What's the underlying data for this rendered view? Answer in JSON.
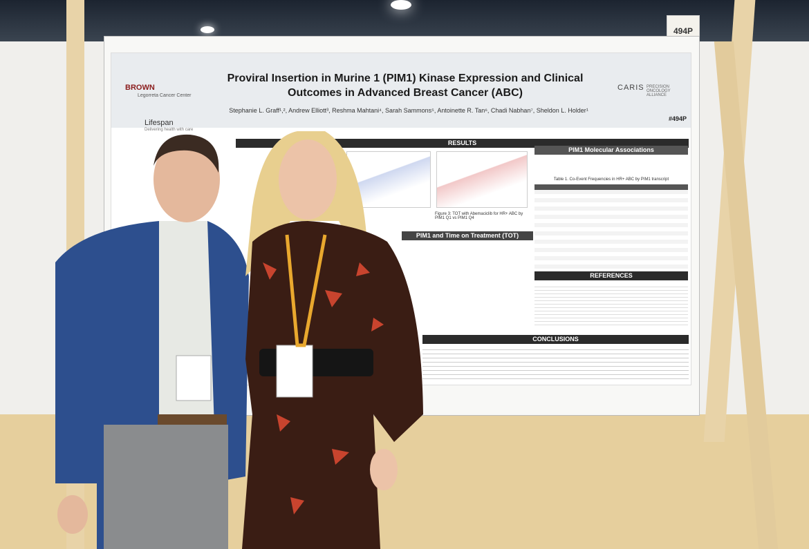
{
  "booth_number": "494P",
  "poster": {
    "title": "Proviral Insertion in Murine 1 (PIM1) Kinase Expression and Clinical Outcomes in Advanced Breast Cancer (ABC)",
    "authors": "Stephanie L. Graff¹,², Andrew Elliott³, Reshma Mahtani⁴, Sarah Sammons⁵, Antoinette R. Tan⁶, Chadi Nabhan⁷, Sheldon L. Holder¹",
    "poster_id": "#494P",
    "logos": {
      "brown": "BROWN",
      "brown_sub": "Legorreta Cancer Center",
      "lifespan": "Lifespan",
      "lifespan_sub": "Delivering health with care",
      "caris": "CARIS",
      "caris_sub": "PRECISION ONCOLOGY ALLIANCE"
    },
    "sections": {
      "results": "RESULTS",
      "molecular": "PIM1 Molecular Associations",
      "tot": "PIM1 and Time on Treatment (TOT)",
      "references": "REFERENCES",
      "conclusions": "CONCLUSIONS"
    },
    "table_caption": "Table 1. Co-Event Frequencies in HR+ ABC by PIM1 transcript",
    "figure3_caption": "Figure 3: TOT with Abemaciclib for HR+ ABC by PIM1 Q1 vs PIM1 Q4"
  }
}
